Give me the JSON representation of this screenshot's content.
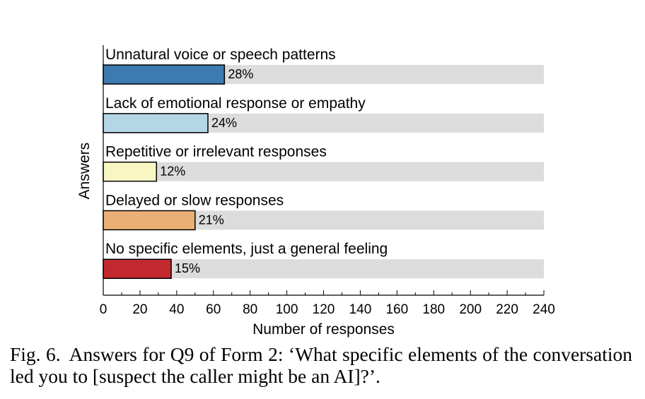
{
  "chart_data": {
    "type": "bar",
    "orientation": "horizontal",
    "categories": [
      "Unnatural voice or speech patterns",
      "Lack of emotional response or empathy",
      "Repetitive or irrelevant responses",
      "Delayed or slow responses",
      "No specific elements, just a general feeling"
    ],
    "values": [
      66,
      57,
      29,
      50,
      37
    ],
    "value_labels": [
      "28%",
      "24%",
      "12%",
      "21%",
      "15%"
    ],
    "colors": [
      "#3d7ab0",
      "#b4d6e6",
      "#f8f7c4",
      "#eaaf75",
      "#c1292e"
    ],
    "background_track_color": "#dcdcdc",
    "xlabel": "Number of responses",
    "ylabel": "Answers",
    "xlim": [
      0,
      240
    ],
    "x_ticks": [
      0,
      20,
      40,
      60,
      80,
      100,
      120,
      140,
      160,
      180,
      200,
      220,
      240
    ],
    "grid": false
  },
  "caption": {
    "label": "Fig. 6.",
    "text": "Answers for Q9 of Form 2: ‘What specific elements of the conversation led you to [suspect the caller might be an AI]?’."
  }
}
